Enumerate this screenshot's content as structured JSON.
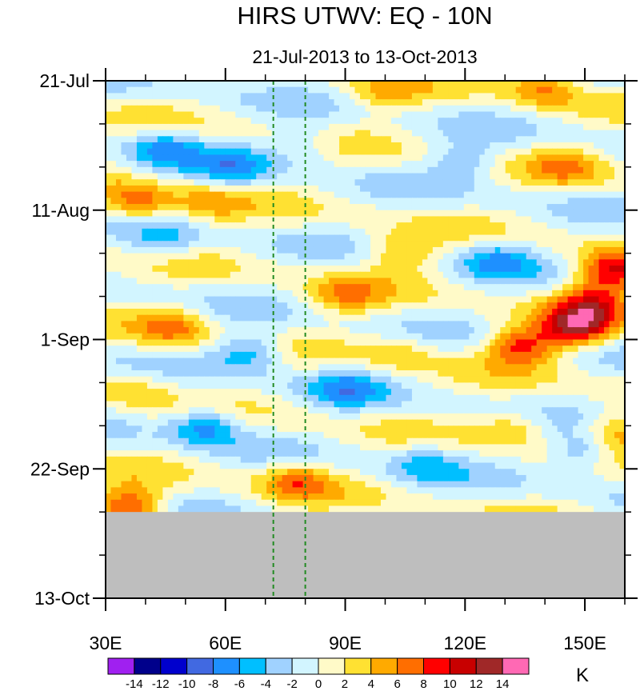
{
  "title": "HIRS UTWV: EQ - 10N",
  "subtitle": "21-Jul-2013 to 13-Oct-2013",
  "colorbar": {
    "unit": "K",
    "levels": [
      -14,
      -12,
      -10,
      -8,
      -6,
      -4,
      -2,
      0,
      2,
      4,
      6,
      8,
      10,
      12,
      14
    ],
    "labels": [
      "-14",
      "-12",
      "-10",
      "-8",
      "-6",
      "-4",
      "-2",
      "0",
      "2",
      "4",
      "6",
      "8",
      "10",
      "12",
      "14"
    ],
    "colors": [
      "#a020f0",
      "#00008b",
      "#0000cd",
      "#4169e1",
      "#1e90ff",
      "#00bfff",
      "#a0d2ff",
      "#d2f5ff",
      "#fffac8",
      "#ffe132",
      "#ffaa00",
      "#ff6e00",
      "#ff0000",
      "#c80000",
      "#a02828",
      "#ff69b4"
    ]
  },
  "colors": {
    "missing": "#bebebe",
    "marker_lines": "#228b22",
    "axis": "#000000"
  },
  "chart_data": {
    "type": "heatmap",
    "title": "HIRS UTWV: EQ - 10N",
    "subtitle": "21-Jul-2013 to 13-Oct-2013",
    "xlabel": "Longitude",
    "ylabel": "Date",
    "xlim": [
      30,
      160
    ],
    "ylim_days": [
      0,
      84
    ],
    "x_ticks": [
      30,
      60,
      90,
      120,
      150
    ],
    "x_tick_labels": [
      "30E",
      "60E",
      "90E",
      "120E",
      "150E"
    ],
    "y_ticks_days": [
      0,
      21,
      42,
      63,
      84
    ],
    "y_tick_labels": [
      "21-Jul",
      "11-Aug",
      "1-Sep",
      "22-Sep",
      "13-Oct"
    ],
    "data_end_day": 70,
    "marker_lines_lon": [
      72,
      80
    ],
    "grid": false,
    "legend": "bottom colorbar",
    "anomaly_features": [
      {
        "lon": 38,
        "day": 20,
        "value": 7
      },
      {
        "lon": 56,
        "day": 20,
        "value": 4
      },
      {
        "lon": 80,
        "day": 10,
        "value": -3
      },
      {
        "lon": 62,
        "day": 14,
        "value": -5
      },
      {
        "lon": 45,
        "day": 11,
        "value": -6
      },
      {
        "lon": 100,
        "day": 2,
        "value": 4
      },
      {
        "lon": 140,
        "day": 1,
        "value": 6
      },
      {
        "lon": 145,
        "day": 14,
        "value": 4
      },
      {
        "lon": 120,
        "day": 13,
        "value": -4
      },
      {
        "lon": 104,
        "day": 28,
        "value": 5
      },
      {
        "lon": 128,
        "day": 29,
        "value": -5
      },
      {
        "lon": 157,
        "day": 31,
        "value": 10
      },
      {
        "lon": 148,
        "day": 40,
        "value": 11
      },
      {
        "lon": 134,
        "day": 43,
        "value": 9
      },
      {
        "lon": 152,
        "day": 36,
        "value": 7
      },
      {
        "lon": 47,
        "day": 40,
        "value": 6
      },
      {
        "lon": 90,
        "day": 35,
        "value": 5
      },
      {
        "lon": 66,
        "day": 44,
        "value": -6
      },
      {
        "lon": 90,
        "day": 50,
        "value": -5
      },
      {
        "lon": 55,
        "day": 56,
        "value": -7
      },
      {
        "lon": 44,
        "day": 26,
        "value": -4
      },
      {
        "lon": 78,
        "day": 65,
        "value": 6
      },
      {
        "lon": 36,
        "day": 69,
        "value": 9
      },
      {
        "lon": 110,
        "day": 62,
        "value": -4
      },
      {
        "lon": 150,
        "day": 60,
        "value": -6
      },
      {
        "lon": 158,
        "day": 57,
        "value": 6
      },
      {
        "lon": 132,
        "day": 56,
        "value": 4
      },
      {
        "lon": 104,
        "day": 44,
        "value": 3
      },
      {
        "lon": 38,
        "day": 50,
        "value": 3
      }
    ]
  }
}
